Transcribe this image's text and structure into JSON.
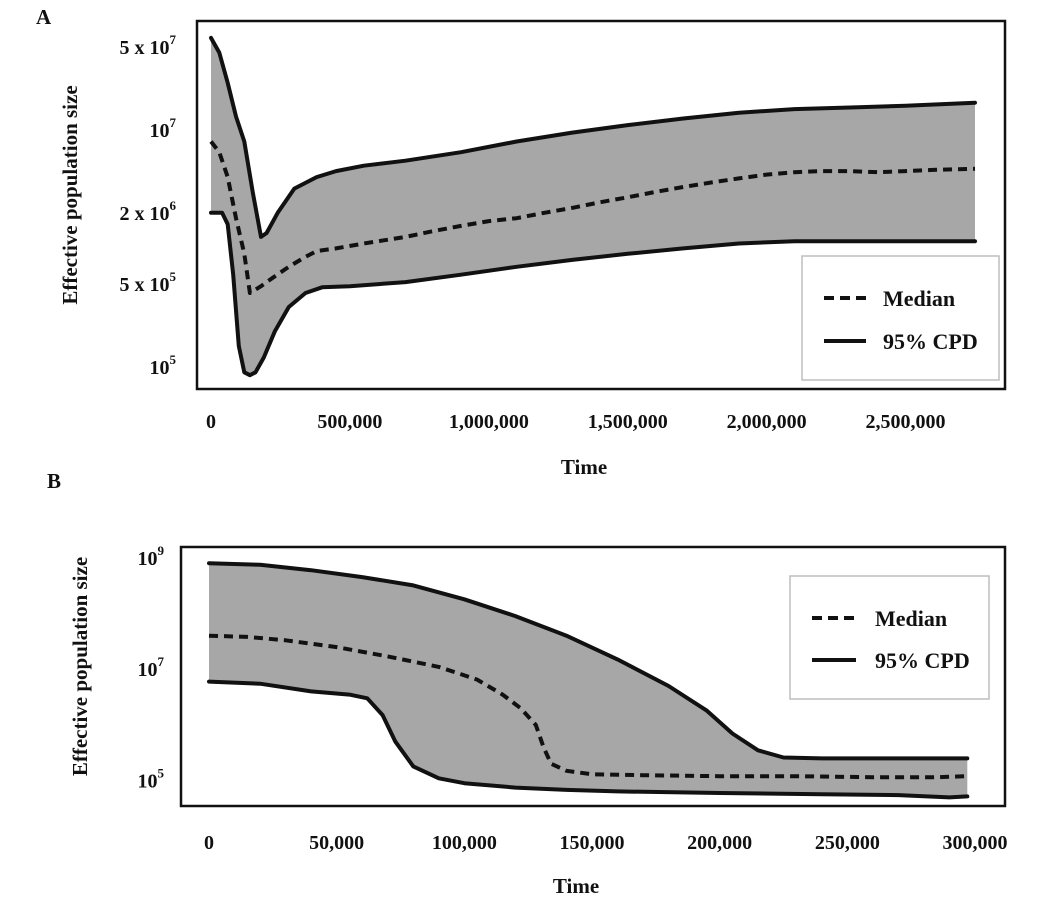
{
  "chart_data": [
    {
      "panel_label": "A",
      "type": "area",
      "xlabel": "Time",
      "ylabel": "Effective population size",
      "xlim": [
        0,
        2750000
      ],
      "ylim": [
        65000,
        90000000
      ],
      "yscale": "log",
      "xticks": [
        0,
        500000,
        1000000,
        1500000,
        2000000,
        2500000
      ],
      "xtick_labels": [
        "0",
        "500,000",
        "1,000,000",
        "1,500,000",
        "2,000,000",
        "2,500,000"
      ],
      "yticks": [
        {
          "value": 100000,
          "base": "10",
          "exp": "5"
        },
        {
          "value": 500000,
          "base": "5 x 10",
          "exp": "5"
        },
        {
          "value": 2000000,
          "base": "2 x 10",
          "exp": "6"
        },
        {
          "value": 10000000,
          "base": "10",
          "exp": "7"
        },
        {
          "value": 50000000,
          "base": "5 x 10",
          "exp": "7"
        }
      ],
      "legend": {
        "entries": [
          "Median",
          "95% CPD"
        ],
        "position": "lower-right"
      },
      "series": [
        {
          "name": "Median",
          "style": "dashed",
          "x": [
            0,
            30000,
            60000,
            90000,
            120000,
            140000,
            180000,
            220000,
            280000,
            340000,
            380000,
            450000,
            550000,
            700000,
            800000,
            900000,
            1000000,
            1100000,
            1200000,
            1300000,
            1400000,
            1500000,
            1600000,
            1700000,
            1800000,
            1900000,
            2000000,
            2100000,
            2200000,
            2300000,
            2400000,
            2500000,
            2600000,
            2750000
          ],
          "y": [
            8000000,
            6500000,
            4000000,
            1800000,
            900000,
            420000,
            480000,
            560000,
            700000,
            850000,
            950000,
            1000000,
            1100000,
            1250000,
            1400000,
            1550000,
            1700000,
            1800000,
            2000000,
            2200000,
            2450000,
            2700000,
            3000000,
            3300000,
            3600000,
            3900000,
            4200000,
            4400000,
            4500000,
            4500000,
            4400000,
            4500000,
            4600000,
            4700000
          ]
        },
        {
          "name": "95% CPD (upper)",
          "style": "solid",
          "x": [
            0,
            30000,
            60000,
            90000,
            120000,
            150000,
            180000,
            200000,
            240000,
            300000,
            380000,
            450000,
            550000,
            700000,
            900000,
            1100000,
            1300000,
            1500000,
            1700000,
            1900000,
            2100000,
            2300000,
            2500000,
            2750000
          ],
          "y": [
            60000000,
            45000000,
            25000000,
            13000000,
            8000000,
            3000000,
            1250000,
            1350000,
            2000000,
            3200000,
            4000000,
            4500000,
            5000000,
            5500000,
            6500000,
            8000000,
            9500000,
            11000000,
            12500000,
            14000000,
            15000000,
            15500000,
            16000000,
            17000000
          ]
        },
        {
          "name": "95% CPD (lower)",
          "style": "solid",
          "x": [
            0,
            40000,
            60000,
            80000,
            100000,
            120000,
            140000,
            160000,
            190000,
            230000,
            280000,
            340000,
            400000,
            500000,
            700000,
            900000,
            1100000,
            1300000,
            1500000,
            1700000,
            1900000,
            2100000,
            2300000,
            2500000,
            2750000
          ],
          "y": [
            2000000,
            2000000,
            1600000,
            600000,
            150000,
            90000,
            85000,
            90000,
            120000,
            200000,
            320000,
            420000,
            470000,
            480000,
            520000,
            600000,
            700000,
            800000,
            900000,
            1000000,
            1100000,
            1150000,
            1150000,
            1150000,
            1150000
          ]
        }
      ]
    },
    {
      "panel_label": "B",
      "type": "area",
      "xlabel": "Time",
      "ylabel": "Effective population size",
      "xlim": [
        0,
        300000
      ],
      "ylim": [
        35000,
        1700000000
      ],
      "yscale": "log",
      "xticks": [
        0,
        50000,
        100000,
        150000,
        200000,
        250000,
        300000
      ],
      "xtick_labels": [
        "0",
        "50,000",
        "100,000",
        "150,000",
        "200,000",
        "250,000",
        "300,000"
      ],
      "yticks": [
        {
          "value": 100000,
          "base": "10",
          "exp": "5"
        },
        {
          "value": 10000000,
          "base": "10",
          "exp": "7"
        },
        {
          "value": 1000000000,
          "base": "10",
          "exp": "9"
        }
      ],
      "legend": {
        "entries": [
          "Median",
          "95% CPD"
        ],
        "position": "upper-right"
      },
      "series": [
        {
          "name": "Median",
          "style": "dashed",
          "x": [
            0,
            15000,
            30000,
            50000,
            70000,
            90000,
            105000,
            115000,
            122000,
            128000,
            131000,
            134000,
            140000,
            150000,
            170000,
            200000,
            230000,
            260000,
            285000,
            297000
          ],
          "y": [
            40000000,
            38000000,
            33000000,
            25000000,
            17000000,
            11000000,
            6500000,
            3500000,
            2000000,
            1000000,
            400000,
            200000,
            150000,
            130000,
            125000,
            120000,
            120000,
            115000,
            115000,
            120000
          ]
        },
        {
          "name": "95% CPD (upper)",
          "style": "solid",
          "x": [
            0,
            20000,
            40000,
            60000,
            80000,
            100000,
            120000,
            140000,
            160000,
            180000,
            195000,
            205000,
            215000,
            225000,
            240000,
            260000,
            280000,
            297000
          ],
          "y": [
            800000000,
            750000000,
            600000000,
            450000000,
            320000000,
            180000000,
            90000000,
            40000000,
            15000000,
            5000000,
            1800000,
            700000,
            350000,
            260000,
            250000,
            250000,
            250000,
            250000
          ]
        },
        {
          "name": "95% CPD (lower)",
          "style": "solid",
          "x": [
            0,
            20000,
            40000,
            55000,
            62000,
            68000,
            73000,
            80000,
            90000,
            100000,
            120000,
            140000,
            160000,
            200000,
            240000,
            270000,
            290000,
            297000
          ],
          "y": [
            6000000,
            5500000,
            4000000,
            3500000,
            3000000,
            1500000,
            500000,
            180000,
            110000,
            90000,
            75000,
            68000,
            64000,
            60000,
            57000,
            55000,
            50000,
            52000
          ]
        }
      ]
    }
  ]
}
